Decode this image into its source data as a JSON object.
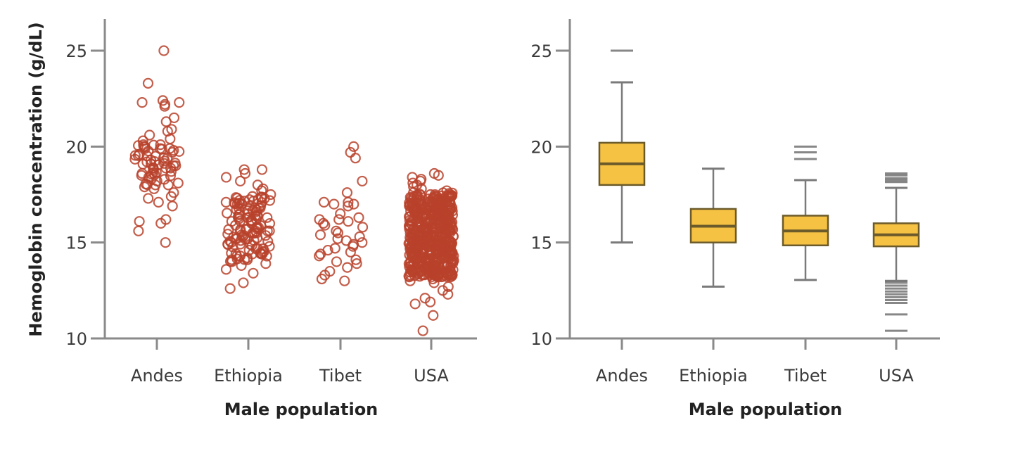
{
  "chart_data": [
    {
      "type": "scatter",
      "title": "",
      "xlabel": "Male population",
      "ylabel": "Hemoglobin concentration (g/dL)",
      "ylim": [
        10,
        26.5
      ],
      "yticks": [
        10,
        15,
        20,
        25
      ],
      "categories": [
        "Andes",
        "Ethiopia",
        "Tibet",
        "USA"
      ],
      "grid": false,
      "series": [
        {
          "name": "Andes",
          "color": "#b8422c",
          "values": [
            25.0,
            23.3,
            22.4,
            22.3,
            22.2,
            22.1,
            22.3,
            21.5,
            21.3,
            20.9,
            20.8,
            20.6,
            20.4,
            20.3,
            20.1,
            20.0,
            20.0,
            19.9,
            19.8,
            19.7,
            19.6,
            19.5,
            19.4,
            19.3,
            19.2,
            19.1,
            19.0,
            19.0,
            18.9,
            18.8,
            18.7,
            18.6,
            18.5,
            18.4,
            18.3,
            18.2,
            18.1,
            18.0,
            18.0,
            17.9,
            17.8,
            17.6,
            17.4,
            17.3,
            17.1,
            16.9,
            16.2,
            16.1,
            16.0,
            15.6,
            15.0
          ]
        },
        {
          "name": "Ethiopia",
          "color": "#b8422c",
          "values": [
            18.8,
            18.8,
            18.6,
            18.4,
            18.2,
            18.0,
            17.8,
            17.7,
            17.5,
            17.4,
            17.3,
            17.2,
            17.1,
            17.0,
            16.9,
            16.8,
            16.7,
            16.6,
            16.5,
            16.4,
            16.3,
            16.2,
            16.1,
            16.0,
            15.9,
            15.8,
            15.7,
            15.6,
            15.5,
            15.4,
            15.3,
            15.2,
            15.1,
            15.0,
            14.9,
            14.8,
            14.7,
            14.6,
            14.5,
            14.4,
            14.3,
            14.2,
            14.1,
            14.0,
            13.9,
            13.8,
            13.6,
            13.4,
            12.9,
            12.6
          ]
        },
        {
          "name": "Tibet",
          "color": "#b8422c",
          "values": [
            20.0,
            19.7,
            19.4,
            18.2,
            17.6,
            17.1,
            17.1,
            17.0,
            17.0,
            16.9,
            16.5,
            16.3,
            16.2,
            16.2,
            16.1,
            16.0,
            15.9,
            15.8,
            15.6,
            15.5,
            15.4,
            15.3,
            15.2,
            15.1,
            15.0,
            14.9,
            14.8,
            14.7,
            14.6,
            14.5,
            14.4,
            14.3,
            14.1,
            14.0,
            13.9,
            13.7,
            13.5,
            13.3,
            13.1,
            13.0
          ]
        },
        {
          "name": "USA",
          "color": "#b8422c",
          "values": [
            18.6,
            18.5,
            18.4,
            18.3,
            18.2,
            18.1,
            18.0,
            17.9,
            17.8,
            17.7,
            17.6,
            17.5,
            17.4,
            17.3,
            17.2,
            17.1,
            17.0,
            16.9,
            16.8,
            16.7,
            16.6,
            16.5,
            16.4,
            16.3,
            16.2,
            16.1,
            16.0,
            15.9,
            15.8,
            15.7,
            15.6,
            15.5,
            15.4,
            15.3,
            15.2,
            15.1,
            15.0,
            14.9,
            14.8,
            14.7,
            14.6,
            14.5,
            14.4,
            14.3,
            14.2,
            14.1,
            14.0,
            13.9,
            13.8,
            13.7,
            13.6,
            13.5,
            13.4,
            13.3,
            13.2,
            13.1,
            13.0,
            12.9,
            12.7,
            12.5,
            12.3,
            12.1,
            11.9,
            11.8,
            11.2,
            10.4
          ]
        }
      ]
    },
    {
      "type": "box",
      "title": "",
      "xlabel": "Male population",
      "ylabel": "",
      "ylim": [
        10,
        26.5
      ],
      "yticks": [
        10,
        15,
        20,
        25
      ],
      "categories": [
        "Andes",
        "Ethiopia",
        "Tibet",
        "USA"
      ],
      "grid": false,
      "box_color": "#f6c244",
      "boxes": [
        {
          "name": "Andes",
          "whisker_low": 15.0,
          "q1": 18.0,
          "median": 19.1,
          "q3": 20.2,
          "whisker_high": 23.35,
          "outliers": [
            25.0
          ]
        },
        {
          "name": "Ethiopia",
          "whisker_low": 12.7,
          "q1": 15.0,
          "median": 15.85,
          "q3": 16.75,
          "whisker_high": 18.85,
          "outliers": []
        },
        {
          "name": "Tibet",
          "whisker_low": 13.05,
          "q1": 14.85,
          "median": 15.6,
          "q3": 16.4,
          "whisker_high": 18.25,
          "outliers": [
            20.0,
            19.7,
            19.35
          ]
        },
        {
          "name": "USA",
          "whisker_low": 13.0,
          "q1": 14.8,
          "median": 15.4,
          "q3": 16.0,
          "whisker_high": 17.85,
          "outliers": [
            18.6,
            18.5,
            18.35,
            18.25,
            18.15,
            12.9,
            12.75,
            12.6,
            12.45,
            12.3,
            12.15,
            12.0,
            11.85,
            11.25,
            10.4
          ]
        }
      ]
    }
  ]
}
